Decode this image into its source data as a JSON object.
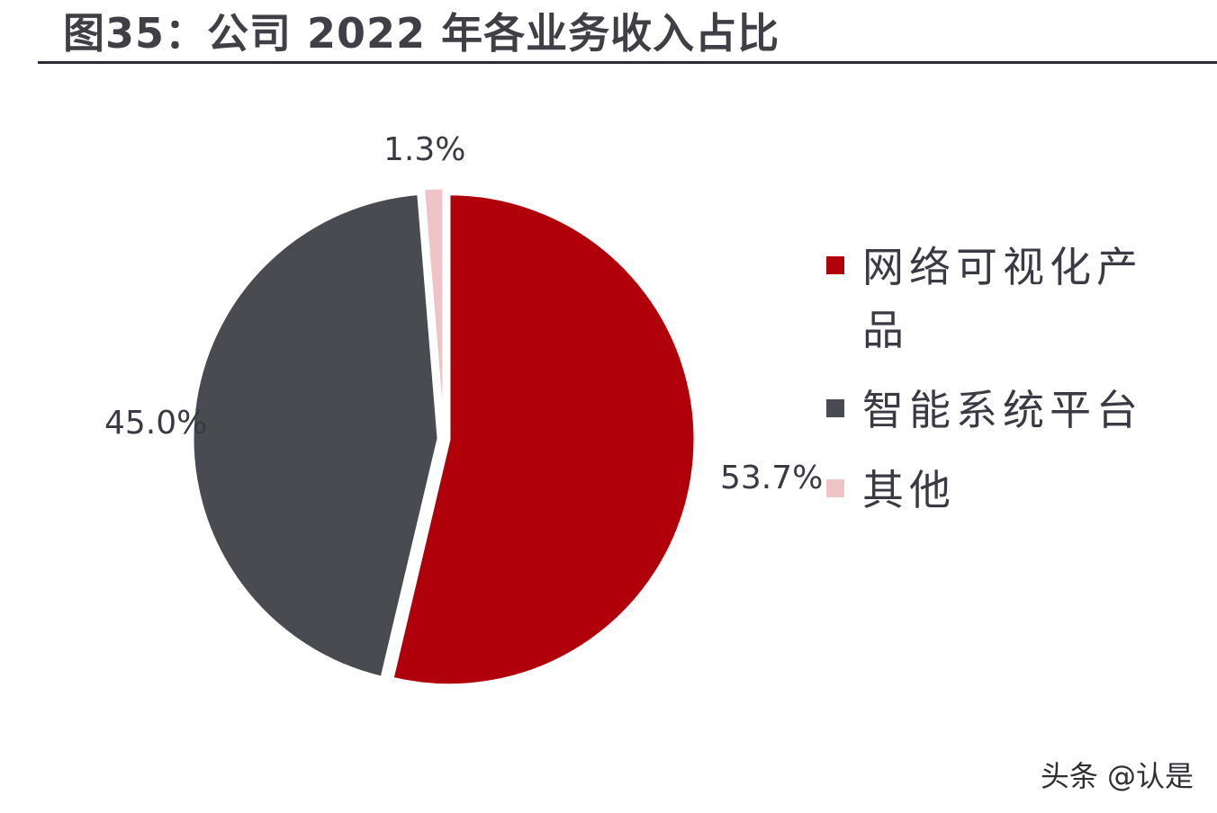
{
  "title": "图35：公司 2022 年各业务收入占比",
  "watermark": "头条 @认是",
  "colors": {
    "network_visual": "#b00009",
    "smart_system": "#4a4b51",
    "other": "#f0c4c6",
    "label_text": "#3a3a44"
  },
  "chart_data": {
    "type": "pie",
    "title": "",
    "legend_position": "right",
    "slices": [
      {
        "name": "网络可视化产品",
        "value": 53.7,
        "label": "53.7%",
        "color": "#b00009"
      },
      {
        "name": "智能系统平台",
        "value": 45.0,
        "label": "45.0%",
        "color": "#4a4b51"
      },
      {
        "name": "其他",
        "value": 1.3,
        "label": "1.3%",
        "color": "#f0c4c6"
      }
    ]
  }
}
